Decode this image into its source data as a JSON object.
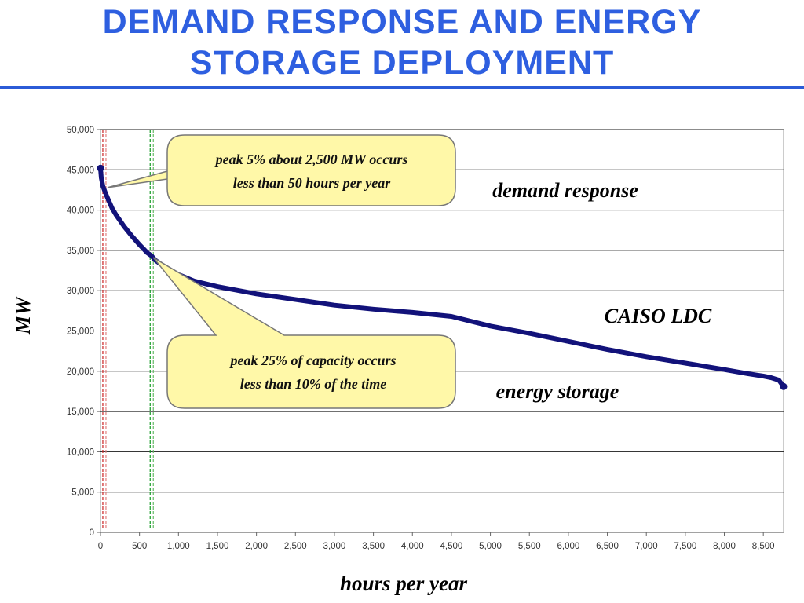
{
  "slide": {
    "title_line1": "DEMAND  RESPONSE  AND  ENERGY",
    "title_line2": "STORAGE  DEPLOYMENT",
    "title_color": "#2e5fe0",
    "rule_color": "#2b5bd7"
  },
  "chart_data": {
    "type": "line",
    "xlabel": "hours per year",
    "ylabel": "MW",
    "xlim": [
      0,
      8760
    ],
    "ylim": [
      0,
      50000
    ],
    "xticks": [
      0,
      500,
      1000,
      1500,
      2000,
      2500,
      3000,
      3500,
      4000,
      4500,
      5000,
      5500,
      6000,
      6500,
      7000,
      7500,
      8000,
      8500
    ],
    "xtick_labels": [
      "0",
      "500",
      "1,000",
      "1,500",
      "2,000",
      "2,500",
      "3,000",
      "3,500",
      "4,000",
      "4,500",
      "5,000",
      "5,500",
      "6,000",
      "6,500",
      "7,000",
      "7,500",
      "8,000",
      "8,500"
    ],
    "yticks": [
      0,
      5000,
      10000,
      15000,
      20000,
      25000,
      30000,
      35000,
      40000,
      45000,
      50000
    ],
    "ytick_labels": [
      "0",
      "5,000",
      "10,000",
      "15,000",
      "20,000",
      "25,000",
      "30,000",
      "35,000",
      "40,000",
      "45,000",
      "50,000"
    ],
    "grid": true,
    "series": [
      {
        "color": "#12127a",
        "x": [
          0,
          10,
          30,
          60,
          100,
          150,
          200,
          300,
          400,
          500,
          600,
          657,
          700,
          800,
          1000,
          1200,
          1500,
          2000,
          2500,
          3000,
          3500,
          4000,
          4500,
          5000,
          5500,
          6000,
          6500,
          7000,
          7500,
          8000,
          8300,
          8500,
          8600,
          8700,
          8760
        ],
        "y": [
          45200,
          44000,
          43000,
          42200,
          41300,
          40200,
          39400,
          38000,
          36800,
          35700,
          34700,
          34300,
          33800,
          33100,
          32000,
          31200,
          30500,
          29600,
          28900,
          28200,
          27700,
          27300,
          26800,
          25600,
          24700,
          23700,
          22700,
          21800,
          21000,
          20200,
          19700,
          19400,
          19200,
          18900,
          18100
        ]
      }
    ],
    "markers": [
      {
        "x": 50,
        "style": "double-dashed",
        "colors": [
          "#cc2222",
          "#e08080"
        ]
      },
      {
        "x": 657,
        "style": "double-dashed",
        "colors": [
          "#119922",
          "#66bb66"
        ]
      }
    ],
    "callouts": [
      {
        "line1": "peak 5% about 2,500 MW occurs",
        "line2": "less than 50 hours per year",
        "point_x": 50,
        "point_y": 42800
      },
      {
        "line1": "peak 25% of capacity occurs",
        "line2": "less than 10% of the time",
        "point_x": 657,
        "point_y": 34300
      }
    ],
    "annotations": [
      "demand response",
      "CAISO  LDC",
      "energy storage"
    ],
    "callout_fill": "#fff8a8",
    "callout_stroke": "#777777",
    "grid_color": "#1a1a1a",
    "axis_text_color": "#333333"
  }
}
